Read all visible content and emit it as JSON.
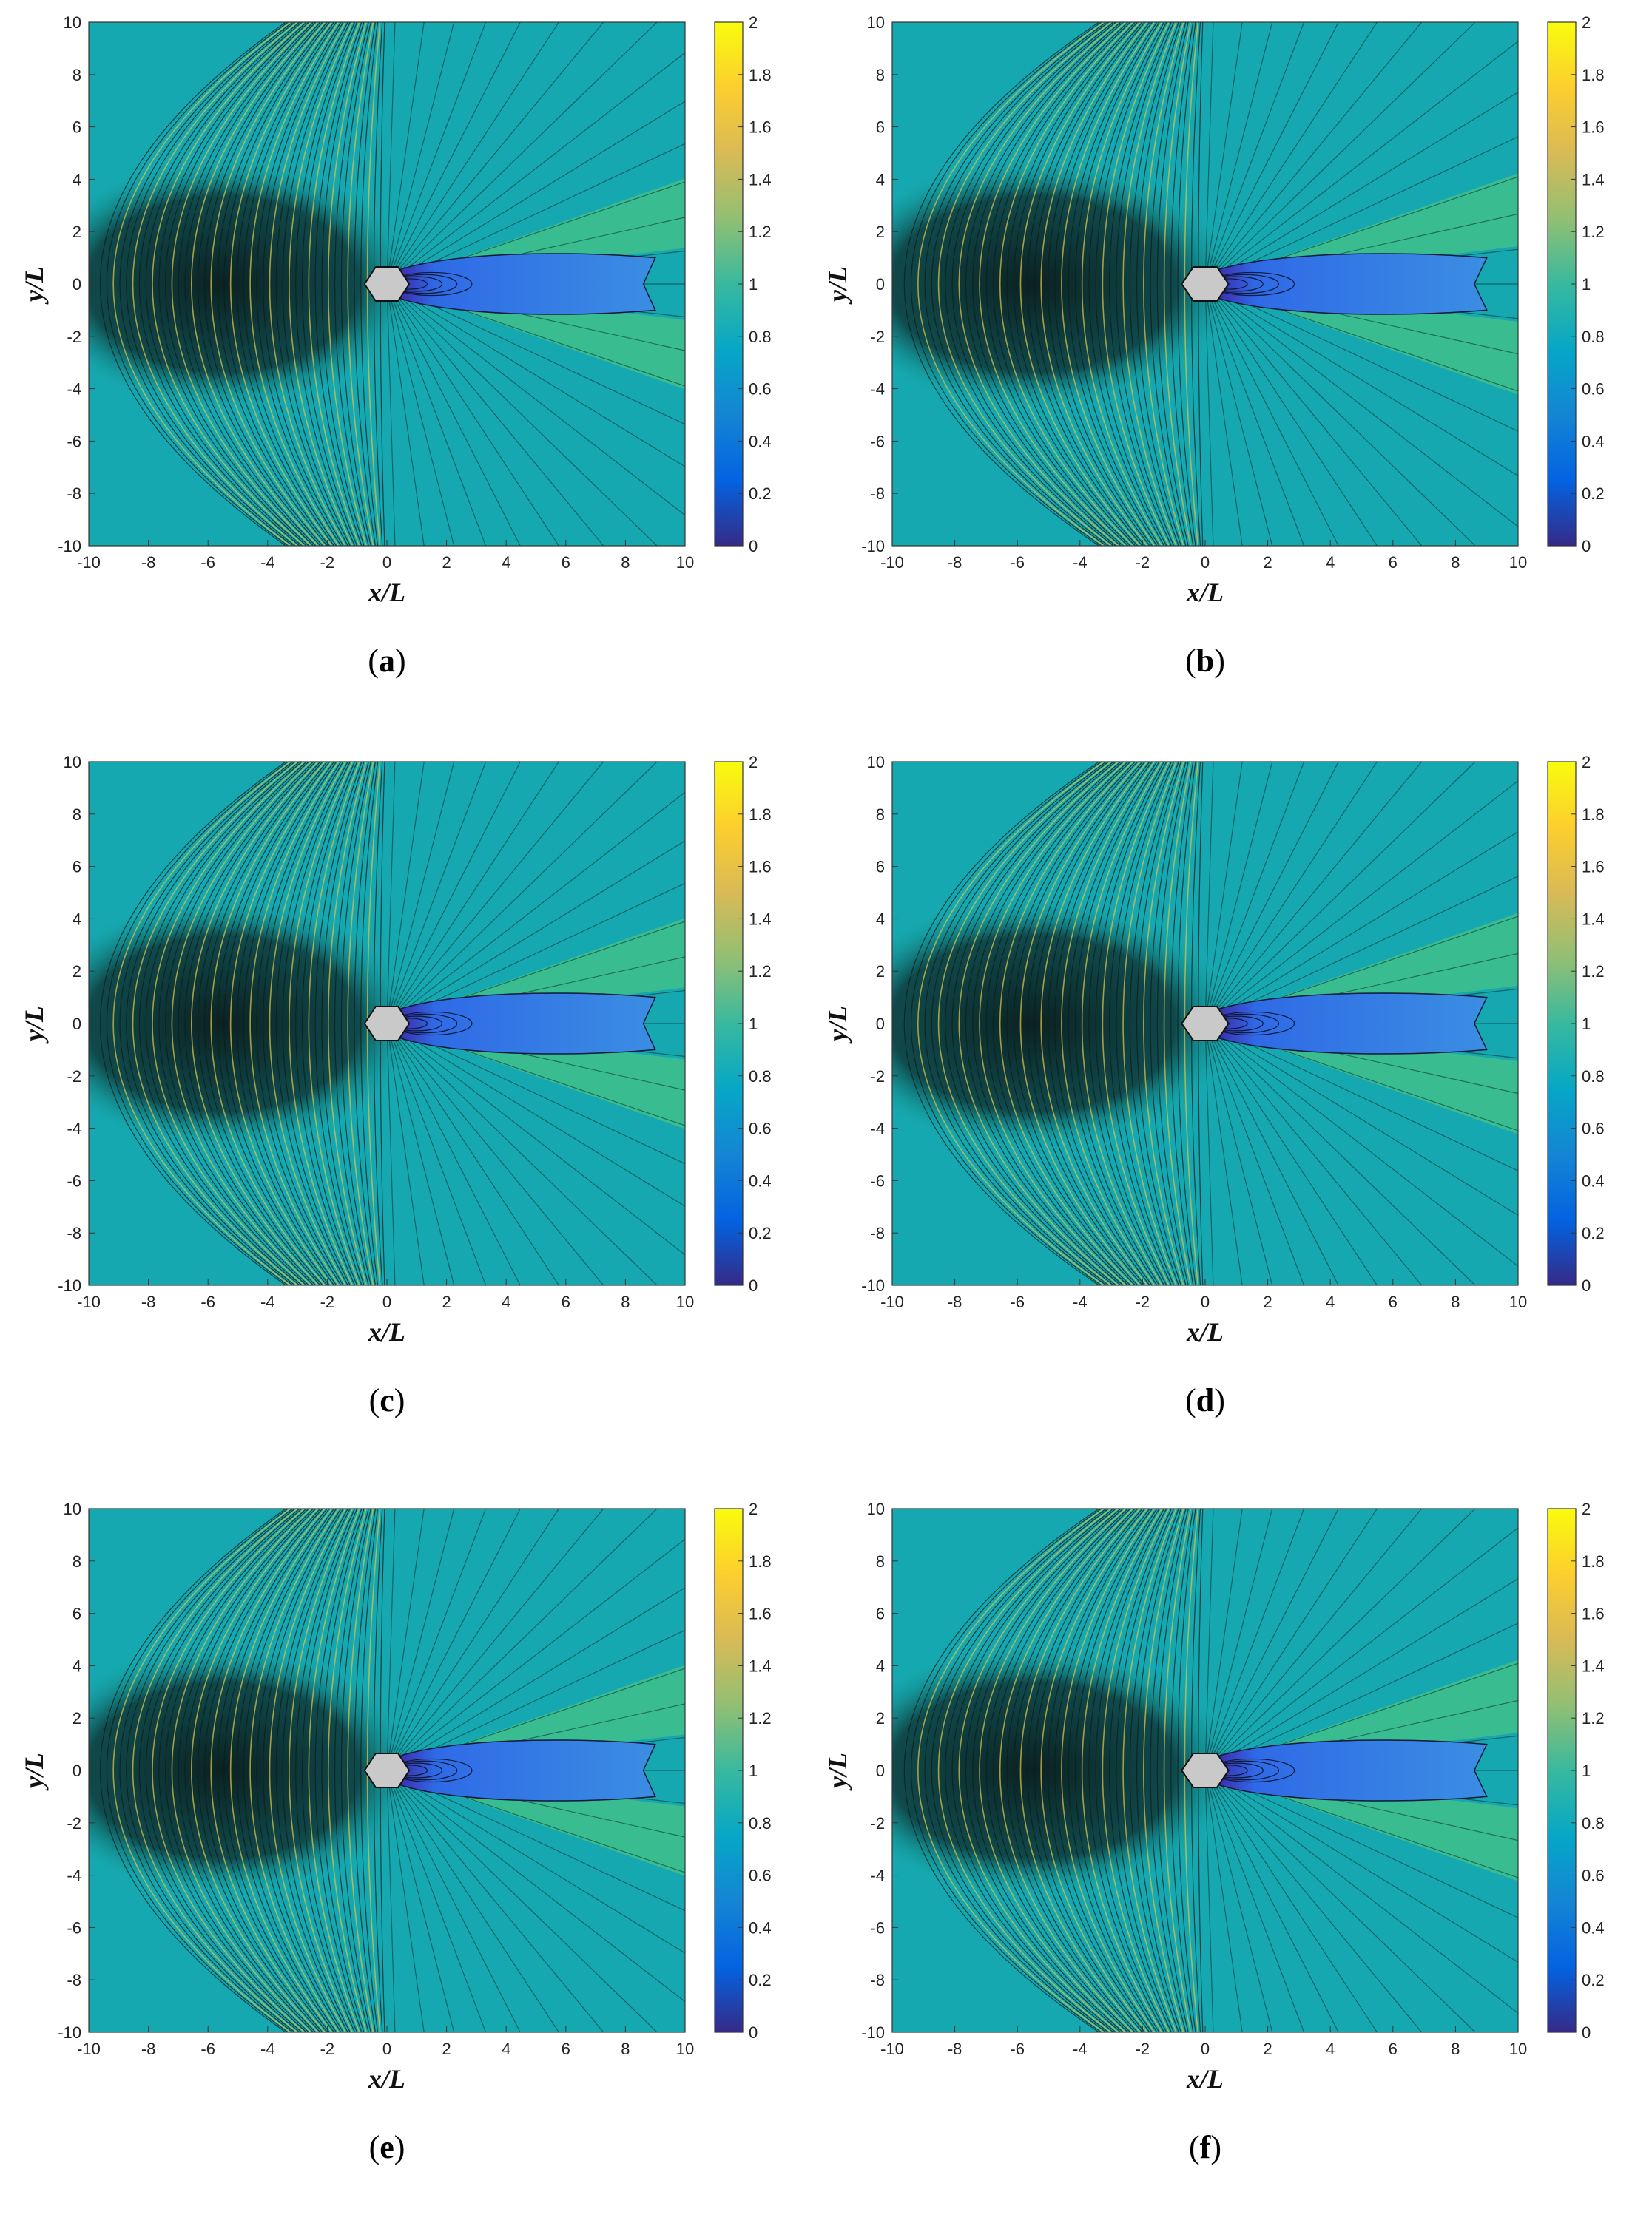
{
  "figure": {
    "panels": [
      {
        "id": "a",
        "label_open": "(",
        "label_letter": "a",
        "label_close": ")"
      },
      {
        "id": "b",
        "label_open": "(",
        "label_letter": "b",
        "label_close": ")"
      },
      {
        "id": "c",
        "label_open": "(",
        "label_letter": "c",
        "label_close": ")"
      },
      {
        "id": "d",
        "label_open": "(",
        "label_letter": "d",
        "label_close": ")"
      },
      {
        "id": "e",
        "label_open": "(",
        "label_letter": "e",
        "label_close": ")"
      },
      {
        "id": "f",
        "label_open": "(",
        "label_letter": "f",
        "label_close": ")"
      }
    ]
  },
  "chart_data": [
    {
      "type": "heatmap",
      "panel": "a",
      "xlabel": "x/L",
      "ylabel": "y/L",
      "xlim": [
        -10,
        10
      ],
      "ylim": [
        -10,
        10
      ],
      "xticks": [
        -10,
        -8,
        -6,
        -4,
        -2,
        0,
        2,
        4,
        6,
        8,
        10
      ],
      "yticks": [
        -10,
        -8,
        -6,
        -4,
        -2,
        0,
        2,
        4,
        6,
        8,
        10
      ],
      "colorbar_range": [
        0,
        2
      ],
      "colorbar_ticks": [
        0,
        0.2,
        0.4,
        0.6,
        0.8,
        1,
        1.2,
        1.4,
        1.6,
        1.8,
        2
      ],
      "colormap": "parula",
      "contour_lines": true,
      "body_at": [
        0,
        0
      ]
    },
    {
      "type": "heatmap",
      "panel": "b",
      "xlabel": "x/L",
      "ylabel": "y/L",
      "xlim": [
        -10,
        10
      ],
      "ylim": [
        -10,
        10
      ],
      "xticks": [
        -10,
        -8,
        -6,
        -4,
        -2,
        0,
        2,
        4,
        6,
        8,
        10
      ],
      "yticks": [
        -10,
        -8,
        -6,
        -4,
        -2,
        0,
        2,
        4,
        6,
        8,
        10
      ],
      "colorbar_range": [
        0,
        2
      ],
      "colorbar_ticks": [
        0,
        0.2,
        0.4,
        0.6,
        0.8,
        1,
        1.2,
        1.4,
        1.6,
        1.8,
        2
      ],
      "colormap": "parula",
      "contour_lines": true,
      "body_at": [
        0,
        0
      ]
    },
    {
      "type": "heatmap",
      "panel": "c",
      "xlabel": "x/L",
      "ylabel": "y/L",
      "xlim": [
        -10,
        10
      ],
      "ylim": [
        -10,
        10
      ],
      "xticks": [
        -10,
        -8,
        -6,
        -4,
        -2,
        0,
        2,
        4,
        6,
        8,
        10
      ],
      "yticks": [
        -10,
        -8,
        -6,
        -4,
        -2,
        0,
        2,
        4,
        6,
        8,
        10
      ],
      "colorbar_range": [
        0,
        2
      ],
      "colorbar_ticks": [
        0,
        0.2,
        0.4,
        0.6,
        0.8,
        1,
        1.2,
        1.4,
        1.6,
        1.8,
        2
      ],
      "colormap": "parula",
      "contour_lines": true,
      "body_at": [
        0,
        0
      ]
    },
    {
      "type": "heatmap",
      "panel": "d",
      "xlabel": "x/L",
      "ylabel": "y/L",
      "xlim": [
        -10,
        10
      ],
      "ylim": [
        -10,
        10
      ],
      "xticks": [
        -10,
        -8,
        -6,
        -4,
        -2,
        0,
        2,
        4,
        6,
        8,
        10
      ],
      "yticks": [
        -10,
        -8,
        -6,
        -4,
        -2,
        0,
        2,
        4,
        6,
        8,
        10
      ],
      "colorbar_range": [
        0,
        2
      ],
      "colorbar_ticks": [
        0,
        0.2,
        0.4,
        0.6,
        0.8,
        1,
        1.2,
        1.4,
        1.6,
        1.8,
        2
      ],
      "colormap": "parula",
      "contour_lines": true,
      "body_at": [
        0,
        0
      ]
    },
    {
      "type": "heatmap",
      "panel": "e",
      "xlabel": "x/L",
      "ylabel": "y/L",
      "xlim": [
        -10,
        10
      ],
      "ylim": [
        -10,
        10
      ],
      "xticks": [
        -10,
        -8,
        -6,
        -4,
        -2,
        0,
        2,
        4,
        6,
        8,
        10
      ],
      "yticks": [
        -10,
        -8,
        -6,
        -4,
        -2,
        0,
        2,
        4,
        6,
        8,
        10
      ],
      "colorbar_range": [
        0,
        2
      ],
      "colorbar_ticks": [
        0,
        0.2,
        0.4,
        0.6,
        0.8,
        1,
        1.2,
        1.4,
        1.6,
        1.8,
        2
      ],
      "colormap": "parula",
      "contour_lines": true,
      "body_at": [
        0,
        0
      ]
    },
    {
      "type": "heatmap",
      "panel": "f",
      "xlabel": "x/L",
      "ylabel": "y/L",
      "xlim": [
        -10,
        10
      ],
      "ylim": [
        -10,
        10
      ],
      "xticks": [
        -10,
        -8,
        -6,
        -4,
        -2,
        0,
        2,
        4,
        6,
        8,
        10
      ],
      "yticks": [
        -10,
        -8,
        -6,
        -4,
        -2,
        0,
        2,
        4,
        6,
        8,
        10
      ],
      "colorbar_range": [
        0,
        2
      ],
      "colorbar_ticks": [
        0,
        0.2,
        0.4,
        0.6,
        0.8,
        1,
        1.2,
        1.4,
        1.6,
        1.8,
        2
      ],
      "colormap": "parula",
      "contour_lines": true,
      "body_at": [
        0,
        0
      ]
    }
  ]
}
